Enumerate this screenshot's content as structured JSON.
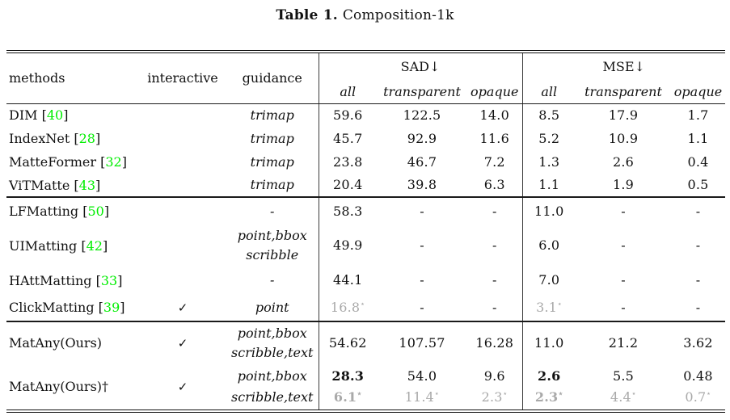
{
  "caption": {
    "label": "Table 1.",
    "text": "Composition-1k"
  },
  "colors": {
    "citation_green": "#00ee00",
    "muted_gray": "#a9a9a9",
    "text": "#111111"
  },
  "table": {
    "icons": {
      "checkmark": "✓",
      "dagger": "†",
      "star": "⋆",
      "down_arrow": "↓"
    },
    "header": {
      "methods": "methods",
      "interactive": "interactive",
      "guidance": "guidance",
      "groups": [
        {
          "name": "SAD↓",
          "cols": [
            "all",
            "transparent",
            "opaque"
          ]
        },
        {
          "name": "MSE↓",
          "cols": [
            "all",
            "transparent",
            "opaque"
          ]
        }
      ]
    },
    "blocks": [
      {
        "rows": [
          {
            "method": "DIM",
            "cite": "40",
            "interactive": false,
            "guidance": [
              "trimap"
            ],
            "cells": [
              [
                {
                  "t": "59.6"
                }
              ],
              [
                {
                  "t": "122.5"
                }
              ],
              [
                {
                  "t": "14.0"
                }
              ],
              [
                {
                  "t": "8.5"
                }
              ],
              [
                {
                  "t": "17.9"
                }
              ],
              [
                {
                  "t": "1.7"
                }
              ]
            ]
          },
          {
            "method": "IndexNet",
            "cite": "28",
            "interactive": false,
            "guidance": [
              "trimap"
            ],
            "cells": [
              [
                {
                  "t": "45.7"
                }
              ],
              [
                {
                  "t": "92.9"
                }
              ],
              [
                {
                  "t": "11.6"
                }
              ],
              [
                {
                  "t": "5.2"
                }
              ],
              [
                {
                  "t": "10.9"
                }
              ],
              [
                {
                  "t": "1.1"
                }
              ]
            ]
          },
          {
            "method": "MatteFormer",
            "cite": "32",
            "interactive": false,
            "guidance": [
              "trimap"
            ],
            "cells": [
              [
                {
                  "t": "23.8"
                }
              ],
              [
                {
                  "t": "46.7"
                }
              ],
              [
                {
                  "t": "7.2"
                }
              ],
              [
                {
                  "t": "1.3"
                }
              ],
              [
                {
                  "t": "2.6"
                }
              ],
              [
                {
                  "t": "0.4"
                }
              ]
            ]
          },
          {
            "method": "ViTMatte",
            "cite": "43",
            "interactive": false,
            "guidance": [
              "trimap"
            ],
            "cells": [
              [
                {
                  "t": "20.4"
                }
              ],
              [
                {
                  "t": "39.8"
                }
              ],
              [
                {
                  "t": "6.3"
                }
              ],
              [
                {
                  "t": "1.1"
                }
              ],
              [
                {
                  "t": "1.9"
                }
              ],
              [
                {
                  "t": "0.5"
                }
              ]
            ]
          }
        ]
      },
      {
        "rows": [
          {
            "method": "LFMatting",
            "cite": "50",
            "interactive": false,
            "guidance": [
              "-"
            ],
            "cells": [
              [
                {
                  "t": "58.3"
                }
              ],
              [
                {
                  "t": "-"
                }
              ],
              [
                {
                  "t": "-"
                }
              ],
              [
                {
                  "t": "11.0"
                }
              ],
              [
                {
                  "t": "-"
                }
              ],
              [
                {
                  "t": "-"
                }
              ]
            ]
          },
          {
            "method": "UIMatting",
            "cite": "42",
            "interactive": false,
            "guidance": [
              "point,bbox",
              "scribble"
            ],
            "cells": [
              [
                {
                  "t": "49.9"
                }
              ],
              [
                {
                  "t": "-"
                }
              ],
              [
                {
                  "t": "-"
                }
              ],
              [
                {
                  "t": "6.0"
                }
              ],
              [
                {
                  "t": "-"
                }
              ],
              [
                {
                  "t": "-"
                }
              ]
            ]
          },
          {
            "method": "HAttMatting",
            "cite": "33",
            "interactive": false,
            "guidance": [
              "-"
            ],
            "cells": [
              [
                {
                  "t": "44.1"
                }
              ],
              [
                {
                  "t": "-"
                }
              ],
              [
                {
                  "t": "-"
                }
              ],
              [
                {
                  "t": "7.0"
                }
              ],
              [
                {
                  "t": "-"
                }
              ],
              [
                {
                  "t": "-"
                }
              ]
            ]
          },
          {
            "method": "ClickMatting",
            "cite": "39",
            "interactive": true,
            "guidance": [
              "point"
            ],
            "cells": [
              [
                {
                  "t": "16.8",
                  "star": true,
                  "gray": true
                }
              ],
              [
                {
                  "t": "-"
                }
              ],
              [
                {
                  "t": "-"
                }
              ],
              [
                {
                  "t": "3.1",
                  "star": true,
                  "gray": true
                }
              ],
              [
                {
                  "t": "-"
                }
              ],
              [
                {
                  "t": "-"
                }
              ]
            ]
          }
        ]
      },
      {
        "rows": [
          {
            "method": "MatAny(Ours)",
            "cite": "",
            "interactive": true,
            "guidance": [
              "point,bbox",
              "scribble,text"
            ],
            "cells": [
              [
                {
                  "t": "54.62"
                }
              ],
              [
                {
                  "t": "107.57"
                }
              ],
              [
                {
                  "t": "16.28"
                }
              ],
              [
                {
                  "t": "11.0"
                }
              ],
              [
                {
                  "t": "21.2"
                }
              ],
              [
                {
                  "t": "3.62"
                }
              ]
            ]
          },
          {
            "method": "MatAny(Ours)",
            "cite": "",
            "dagger": true,
            "interactive": true,
            "guidance": [
              "point,bbox",
              "scribble,text"
            ],
            "cells": [
              [
                {
                  "t": "28.3",
                  "bold": true
                },
                {
                  "t": "6.1",
                  "star": true,
                  "gray": true,
                  "bold": true
                }
              ],
              [
                {
                  "t": "54.0"
                },
                {
                  "t": "11.4",
                  "star": true,
                  "gray": true
                }
              ],
              [
                {
                  "t": "9.6"
                },
                {
                  "t": "2.3",
                  "star": true,
                  "gray": true
                }
              ],
              [
                {
                  "t": "2.6",
                  "bold": true
                },
                {
                  "t": "2.3",
                  "star": true,
                  "gray": true,
                  "bold": true
                }
              ],
              [
                {
                  "t": "5.5"
                },
                {
                  "t": "4.4",
                  "star": true,
                  "gray": true
                }
              ],
              [
                {
                  "t": "0.48"
                },
                {
                  "t": "0.7",
                  "star": true,
                  "gray": true
                }
              ]
            ]
          }
        ]
      }
    ]
  }
}
